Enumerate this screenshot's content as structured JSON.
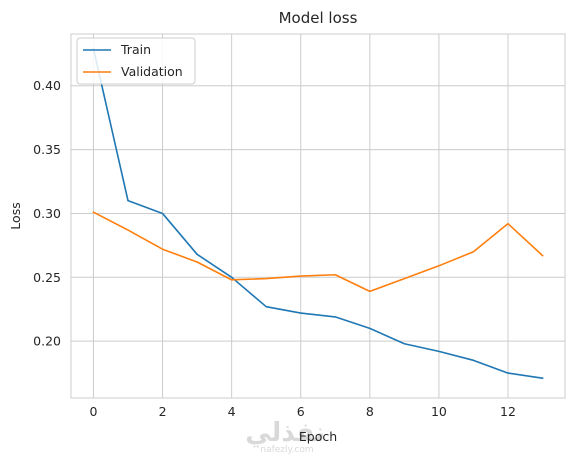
{
  "chart_data": {
    "type": "line",
    "title": "Model loss",
    "xlabel": "Epoch",
    "ylabel": "Loss",
    "x": [
      0,
      1,
      2,
      3,
      4,
      5,
      6,
      7,
      8,
      9,
      10,
      11,
      12,
      13
    ],
    "xlim": [
      -0.65,
      13.65
    ],
    "ylim": [
      0.1555,
      0.4405
    ],
    "xticks": [
      0,
      2,
      4,
      6,
      8,
      10,
      12
    ],
    "yticks": [
      0.2,
      0.25,
      0.3,
      0.35,
      0.4
    ],
    "xtick_labels": [
      "0",
      "2",
      "4",
      "6",
      "8",
      "10",
      "12"
    ],
    "ytick_labels": [
      "0.20",
      "0.25",
      "0.30",
      "0.35",
      "0.40"
    ],
    "grid": true,
    "legend_position": "top-left",
    "series": [
      {
        "name": "Train",
        "color": "#1f77b4",
        "values": [
          0.429,
          0.31,
          0.3,
          0.268,
          0.25,
          0.227,
          0.222,
          0.219,
          0.21,
          0.198,
          0.192,
          0.185,
          0.175,
          0.171
        ]
      },
      {
        "name": "Validation",
        "color": "#ff7f0e",
        "values": [
          0.301,
          0.287,
          0.272,
          0.262,
          0.248,
          0.249,
          0.251,
          0.252,
          0.239,
          0.249,
          0.259,
          0.27,
          0.292,
          0.267
        ]
      }
    ]
  },
  "watermark": {
    "arabic": "نفذلي",
    "latin": "nafezly.com"
  }
}
